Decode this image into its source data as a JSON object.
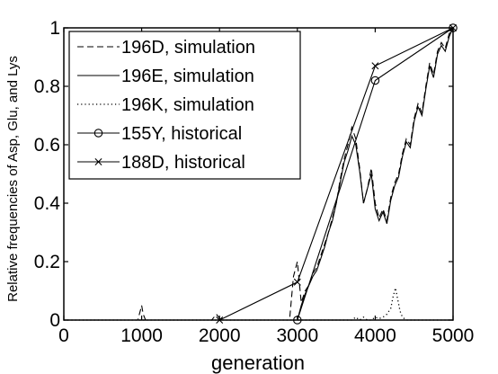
{
  "chart_data": {
    "type": "line",
    "title": "",
    "xlabel": "generation",
    "ylabel": "Relative frequencies of Asp, Glu, and Lys",
    "xlim": [
      0,
      5000
    ],
    "ylim": [
      0,
      1
    ],
    "xticks": [
      {
        "value": 0,
        "label": "0"
      },
      {
        "value": 1000,
        "label": "1000"
      },
      {
        "value": 2000,
        "label": "2000"
      },
      {
        "value": 3000,
        "label": "3000"
      },
      {
        "value": 4000,
        "label": "4000"
      },
      {
        "value": 5000,
        "label": "5000"
      }
    ],
    "yticks": [
      {
        "value": 0,
        "label": "0"
      },
      {
        "value": 0.2,
        "label": "0.2"
      },
      {
        "value": 0.4,
        "label": "0.4"
      },
      {
        "value": 0.6,
        "label": "0.6"
      },
      {
        "value": 0.8,
        "label": "0.8"
      },
      {
        "value": 1,
        "label": "1"
      }
    ],
    "grid": false,
    "legend_position": "top-left",
    "series": [
      {
        "name": "196D, simulation",
        "style": "dashed",
        "color": "#000000",
        "x": [
          0,
          950,
          980,
          1000,
          1020,
          1050,
          1900,
          1930,
          1960,
          1990,
          2020,
          2900,
          2950,
          3000,
          3050,
          3100,
          3150,
          3200,
          3250,
          3300,
          3350,
          3400,
          3450,
          3500,
          3550,
          3600,
          3650,
          3700,
          3750,
          3800,
          3850,
          3900,
          3950,
          4000,
          4050,
          4100,
          4150,
          4200,
          4250,
          4300,
          4350,
          4400,
          4450,
          4500,
          4550,
          4600,
          4650,
          4700,
          4750,
          4800,
          4850,
          4900,
          4950,
          5000
        ],
        "y": [
          0,
          0,
          0.03,
          0.05,
          0.02,
          0,
          0,
          0.01,
          0.02,
          0.01,
          0,
          0,
          0.15,
          0.2,
          0.06,
          0.1,
          0.12,
          0.16,
          0.18,
          0.22,
          0.26,
          0.3,
          0.35,
          0.4,
          0.48,
          0.55,
          0.6,
          0.66,
          0.62,
          0.52,
          0.4,
          0.45,
          0.52,
          0.4,
          0.35,
          0.38,
          0.34,
          0.42,
          0.47,
          0.5,
          0.57,
          0.62,
          0.6,
          0.69,
          0.74,
          0.71,
          0.8,
          0.88,
          0.84,
          0.92,
          0.95,
          0.93,
          0.98,
          1.0
        ]
      },
      {
        "name": "196E, simulation",
        "style": "solid",
        "color": "#000000",
        "x": [
          0,
          3000,
          3050,
          3100,
          3150,
          3200,
          3250,
          3300,
          3350,
          3400,
          3450,
          3500,
          3550,
          3600,
          3650,
          3700,
          3750,
          3800,
          3850,
          3900,
          3950,
          4000,
          4050,
          4100,
          4150,
          4200,
          4250,
          4300,
          4350,
          4400,
          4450,
          4500,
          4550,
          4600,
          4650,
          4700,
          4750,
          4800,
          4850,
          4900,
          4950,
          5000
        ],
        "y": [
          0,
          0,
          0.05,
          0.09,
          0.12,
          0.15,
          0.17,
          0.21,
          0.25,
          0.3,
          0.34,
          0.4,
          0.47,
          0.54,
          0.58,
          0.63,
          0.6,
          0.51,
          0.4,
          0.45,
          0.5,
          0.38,
          0.34,
          0.37,
          0.33,
          0.41,
          0.46,
          0.49,
          0.56,
          0.61,
          0.59,
          0.68,
          0.73,
          0.7,
          0.79,
          0.87,
          0.83,
          0.91,
          0.94,
          0.92,
          0.97,
          1.0
        ]
      },
      {
        "name": "196K, simulation",
        "style": "dotted",
        "color": "#000000",
        "x": [
          0,
          3700,
          3750,
          3800,
          3850,
          3900,
          3950,
          4000,
          4050,
          4100,
          4150,
          4200,
          4230,
          4260,
          4290,
          4320,
          4350,
          4400,
          5000
        ],
        "y": [
          0,
          0,
          0.01,
          0,
          0.01,
          0,
          0,
          0.01,
          0.005,
          0.01,
          0.02,
          0.04,
          0.08,
          0.11,
          0.07,
          0.03,
          0.01,
          0,
          0
        ]
      },
      {
        "name": "155Y, historical",
        "style": "solid",
        "marker": "circle",
        "color": "#000000",
        "x": [
          3000,
          4000,
          5000
        ],
        "y": [
          0,
          0.82,
          1.0
        ]
      },
      {
        "name": "188D, historical",
        "style": "solid",
        "marker": "x",
        "color": "#000000",
        "x": [
          2000,
          3000,
          4000,
          5000
        ],
        "y": [
          0,
          0.13,
          0.87,
          1.0
        ]
      }
    ]
  }
}
